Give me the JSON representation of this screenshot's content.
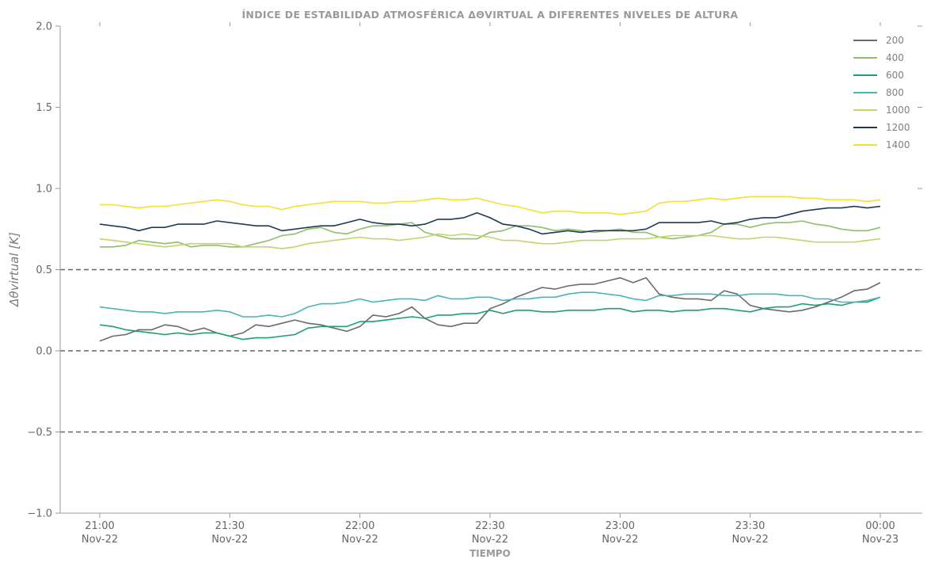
{
  "chart_data": {
    "type": "line",
    "title": "ÍNDICE DE ESTABILIDAD ATMOSFÉRICA ΔΘVIRTUAL A DIFERENTES NIVELES DE ALTURA",
    "xlabel": "TIEMPO",
    "ylabel": "Δθvirtual [K]",
    "ylim": [
      -1.0,
      2.0
    ],
    "yticks": [
      "2.0",
      "1.5",
      "1.0",
      "0.5",
      "0.0",
      "−0.5",
      "−1.0"
    ],
    "ytick_values": [
      2.0,
      1.5,
      1.0,
      0.5,
      0.0,
      -0.5,
      -1.0
    ],
    "x_start": "21:00",
    "x_end": "00:00",
    "x_interval_minutes": 3,
    "xticks": [
      {
        "time": "21:00",
        "date": "Nov-22"
      },
      {
        "time": "21:30",
        "date": "Nov-22"
      },
      {
        "time": "22:00",
        "date": "Nov-22"
      },
      {
        "time": "22:30",
        "date": "Nov-22"
      },
      {
        "time": "23:00",
        "date": "Nov-22"
      },
      {
        "time": "23:30",
        "date": "Nov-22"
      },
      {
        "time": "00:00",
        "date": "Nov-23"
      }
    ],
    "reference_lines": [
      0.5,
      0.0,
      -0.5
    ],
    "legend_position": "top-right",
    "grid": false,
    "series": [
      {
        "name": "200",
        "color": "#6b6b6b",
        "values": [
          0.06,
          0.09,
          0.1,
          0.13,
          0.13,
          0.16,
          0.15,
          0.12,
          0.14,
          0.11,
          0.09,
          0.11,
          0.16,
          0.15,
          0.17,
          0.19,
          0.17,
          0.16,
          0.14,
          0.12,
          0.15,
          0.22,
          0.21,
          0.23,
          0.27,
          0.2,
          0.16,
          0.15,
          0.17,
          0.17,
          0.26,
          0.29,
          0.33,
          0.36,
          0.39,
          0.38,
          0.4,
          0.41,
          0.41,
          0.43,
          0.45,
          0.42,
          0.45,
          0.35,
          0.33,
          0.32,
          0.32,
          0.31,
          0.37,
          0.35,
          0.28,
          0.26,
          0.25,
          0.24,
          0.25,
          0.27,
          0.3,
          0.33,
          0.37,
          0.38,
          0.42
        ]
      },
      {
        "name": "400",
        "color": "#8cc06a",
        "values": [
          0.64,
          0.64,
          0.65,
          0.68,
          0.67,
          0.66,
          0.67,
          0.64,
          0.65,
          0.65,
          0.64,
          0.64,
          0.66,
          0.68,
          0.71,
          0.72,
          0.75,
          0.76,
          0.73,
          0.72,
          0.75,
          0.77,
          0.77,
          0.78,
          0.79,
          0.73,
          0.71,
          0.69,
          0.69,
          0.69,
          0.73,
          0.74,
          0.77,
          0.77,
          0.76,
          0.74,
          0.75,
          0.74,
          0.73,
          0.74,
          0.75,
          0.73,
          0.73,
          0.7,
          0.69,
          0.7,
          0.71,
          0.73,
          0.78,
          0.78,
          0.76,
          0.78,
          0.79,
          0.79,
          0.8,
          0.78,
          0.77,
          0.75,
          0.74,
          0.74,
          0.76
        ]
      },
      {
        "name": "600",
        "color": "#1e9e75",
        "values": [
          0.16,
          0.15,
          0.13,
          0.12,
          0.11,
          0.1,
          0.11,
          0.1,
          0.11,
          0.11,
          0.09,
          0.07,
          0.08,
          0.08,
          0.09,
          0.1,
          0.14,
          0.15,
          0.15,
          0.15,
          0.18,
          0.18,
          0.19,
          0.2,
          0.21,
          0.2,
          0.22,
          0.22,
          0.23,
          0.23,
          0.25,
          0.23,
          0.25,
          0.25,
          0.24,
          0.24,
          0.25,
          0.25,
          0.25,
          0.26,
          0.26,
          0.24,
          0.25,
          0.25,
          0.24,
          0.25,
          0.25,
          0.26,
          0.26,
          0.25,
          0.24,
          0.26,
          0.27,
          0.27,
          0.29,
          0.28,
          0.29,
          0.28,
          0.3,
          0.3,
          0.33
        ]
      },
      {
        "name": "800",
        "color": "#46b5bc",
        "values": [
          0.27,
          0.26,
          0.25,
          0.24,
          0.24,
          0.23,
          0.24,
          0.24,
          0.24,
          0.25,
          0.24,
          0.21,
          0.21,
          0.22,
          0.21,
          0.23,
          0.27,
          0.29,
          0.29,
          0.3,
          0.32,
          0.3,
          0.31,
          0.32,
          0.32,
          0.31,
          0.34,
          0.32,
          0.32,
          0.33,
          0.33,
          0.31,
          0.32,
          0.32,
          0.33,
          0.33,
          0.35,
          0.36,
          0.36,
          0.35,
          0.34,
          0.32,
          0.31,
          0.34,
          0.34,
          0.35,
          0.35,
          0.35,
          0.34,
          0.34,
          0.35,
          0.35,
          0.35,
          0.34,
          0.34,
          0.32,
          0.32,
          0.3,
          0.3,
          0.31,
          0.33
        ]
      },
      {
        "name": "1000",
        "color": "#bfd66a",
        "values": [
          0.69,
          0.68,
          0.67,
          0.66,
          0.65,
          0.64,
          0.65,
          0.66,
          0.66,
          0.66,
          0.66,
          0.64,
          0.64,
          0.64,
          0.63,
          0.64,
          0.66,
          0.67,
          0.68,
          0.69,
          0.7,
          0.69,
          0.69,
          0.68,
          0.69,
          0.7,
          0.72,
          0.71,
          0.72,
          0.71,
          0.7,
          0.68,
          0.68,
          0.67,
          0.66,
          0.66,
          0.67,
          0.68,
          0.68,
          0.68,
          0.69,
          0.69,
          0.69,
          0.7,
          0.71,
          0.71,
          0.71,
          0.71,
          0.7,
          0.69,
          0.69,
          0.7,
          0.7,
          0.69,
          0.68,
          0.67,
          0.67,
          0.67,
          0.67,
          0.68,
          0.69
        ]
      },
      {
        "name": "1200",
        "color": "#203a56",
        "values": [
          0.78,
          0.77,
          0.76,
          0.74,
          0.76,
          0.76,
          0.78,
          0.78,
          0.78,
          0.8,
          0.79,
          0.78,
          0.77,
          0.77,
          0.74,
          0.75,
          0.76,
          0.77,
          0.77,
          0.79,
          0.81,
          0.79,
          0.78,
          0.78,
          0.77,
          0.78,
          0.81,
          0.81,
          0.82,
          0.85,
          0.82,
          0.78,
          0.77,
          0.75,
          0.72,
          0.73,
          0.74,
          0.73,
          0.74,
          0.74,
          0.74,
          0.74,
          0.75,
          0.79,
          0.79,
          0.79,
          0.79,
          0.8,
          0.78,
          0.79,
          0.81,
          0.82,
          0.82,
          0.84,
          0.86,
          0.87,
          0.88,
          0.88,
          0.89,
          0.88,
          0.89
        ]
      },
      {
        "name": "1400",
        "color": "#f2e034",
        "values": [
          0.9,
          0.9,
          0.89,
          0.88,
          0.89,
          0.89,
          0.9,
          0.91,
          0.92,
          0.93,
          0.92,
          0.9,
          0.89,
          0.89,
          0.87,
          0.89,
          0.9,
          0.91,
          0.92,
          0.92,
          0.92,
          0.91,
          0.91,
          0.92,
          0.92,
          0.93,
          0.94,
          0.93,
          0.93,
          0.94,
          0.92,
          0.9,
          0.89,
          0.87,
          0.85,
          0.86,
          0.86,
          0.85,
          0.85,
          0.85,
          0.84,
          0.85,
          0.86,
          0.91,
          0.92,
          0.92,
          0.93,
          0.94,
          0.93,
          0.94,
          0.95,
          0.95,
          0.95,
          0.95,
          0.94,
          0.94,
          0.93,
          0.93,
          0.93,
          0.92,
          0.93
        ]
      }
    ]
  }
}
